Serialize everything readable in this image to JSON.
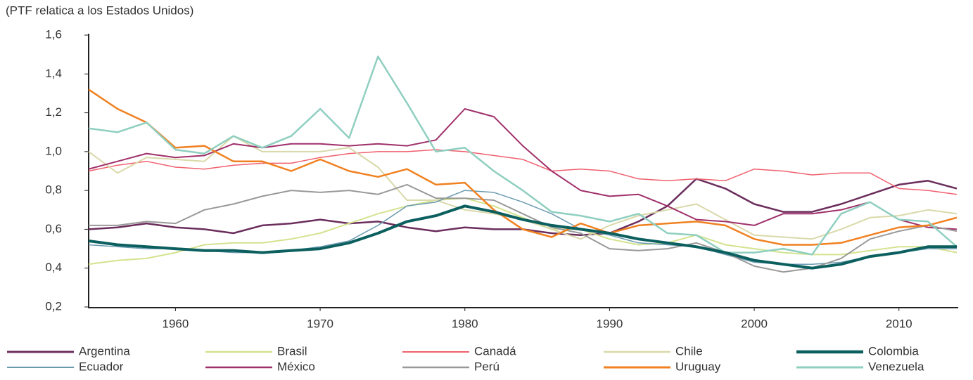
{
  "chart_data": {
    "type": "line",
    "subtitle": "(PTF relatica a los Estados Unidos)",
    "x": [
      1954,
      1956,
      1958,
      1960,
      1962,
      1964,
      1966,
      1968,
      1970,
      1972,
      1974,
      1976,
      1978,
      1980,
      1982,
      1984,
      1986,
      1988,
      1990,
      1992,
      1994,
      1996,
      1998,
      2000,
      2002,
      2004,
      2006,
      2008,
      2010,
      2012,
      2014
    ],
    "xlim": [
      1954,
      2014
    ],
    "xticks": [
      1960,
      1970,
      1980,
      1990,
      2000,
      2010
    ],
    "ylim": [
      0.2,
      1.6
    ],
    "yticks": [
      {
        "value": 0.2,
        "label": "0,2"
      },
      {
        "value": 0.4,
        "label": "0,4"
      },
      {
        "value": 0.6,
        "label": "0,6"
      },
      {
        "value": 0.8,
        "label": "0,8"
      },
      {
        "value": 1.0,
        "label": "1,0"
      },
      {
        "value": 1.2,
        "label": "1,2"
      },
      {
        "value": 1.4,
        "label": "1,4"
      },
      {
        "value": 1.6,
        "label": "1,6"
      }
    ],
    "series": [
      {
        "name": "Argentina",
        "color": "#6b2d5c",
        "width": 2.5,
        "values": [
          0.6,
          0.61,
          0.63,
          0.61,
          0.6,
          0.58,
          0.62,
          0.63,
          0.65,
          0.63,
          0.64,
          0.61,
          0.59,
          0.61,
          0.6,
          0.6,
          0.58,
          0.57,
          0.58,
          0.64,
          0.72,
          0.86,
          0.81,
          0.73,
          0.69,
          0.69,
          0.73,
          0.78,
          0.83,
          0.85,
          0.81
        ]
      },
      {
        "name": "Brasil",
        "color": "#d3e38f",
        "width": 2,
        "values": [
          0.42,
          0.44,
          0.45,
          0.48,
          0.52,
          0.53,
          0.53,
          0.55,
          0.58,
          0.63,
          0.68,
          0.72,
          0.75,
          0.76,
          0.72,
          0.66,
          0.6,
          0.6,
          0.55,
          0.52,
          0.53,
          0.57,
          0.52,
          0.5,
          0.48,
          0.47,
          0.47,
          0.49,
          0.51,
          0.51,
          0.48
        ]
      },
      {
        "name": "Canadá",
        "color": "#f0606e",
        "width": 1.5,
        "values": [
          0.9,
          0.93,
          0.95,
          0.92,
          0.91,
          0.93,
          0.94,
          0.94,
          0.97,
          0.99,
          1.0,
          1.0,
          1.01,
          1.0,
          0.98,
          0.96,
          0.9,
          0.91,
          0.9,
          0.86,
          0.85,
          0.86,
          0.85,
          0.91,
          0.9,
          0.88,
          0.89,
          0.89,
          0.81,
          0.8,
          0.78
        ]
      },
      {
        "name": "Chile",
        "color": "#d9d9aa",
        "width": 2,
        "values": [
          1.0,
          0.89,
          0.97,
          0.96,
          0.95,
          1.08,
          1.0,
          1.0,
          1.0,
          1.02,
          0.92,
          0.75,
          0.75,
          0.7,
          0.68,
          0.65,
          0.6,
          0.55,
          0.62,
          0.67,
          0.7,
          0.73,
          0.65,
          0.57,
          0.56,
          0.55,
          0.6,
          0.66,
          0.67,
          0.7,
          0.68
        ]
      },
      {
        "name": "Colombia",
        "color": "#0c5f5f",
        "width": 4,
        "values": [
          0.54,
          0.52,
          0.51,
          0.5,
          0.49,
          0.49,
          0.48,
          0.49,
          0.5,
          0.53,
          0.58,
          0.64,
          0.67,
          0.72,
          0.69,
          0.65,
          0.62,
          0.6,
          0.58,
          0.55,
          0.53,
          0.51,
          0.48,
          0.44,
          0.42,
          0.4,
          0.42,
          0.46,
          0.48,
          0.51,
          0.51
        ]
      },
      {
        "name": "Ecuador",
        "color": "#6a9ab0",
        "width": 1.5,
        "values": [
          0.52,
          0.51,
          0.5,
          0.5,
          0.49,
          0.48,
          0.48,
          0.49,
          0.51,
          0.54,
          0.62,
          0.72,
          0.74,
          0.8,
          0.79,
          0.74,
          0.68,
          0.6,
          0.57,
          0.53,
          0.52,
          0.51,
          0.47,
          0.43,
          0.42,
          0.42,
          0.43,
          0.46,
          0.48,
          0.5,
          0.5
        ]
      },
      {
        "name": "México",
        "color": "#a0306a",
        "width": 2,
        "values": [
          0.91,
          0.95,
          0.99,
          0.97,
          0.98,
          1.04,
          1.02,
          1.04,
          1.04,
          1.03,
          1.04,
          1.03,
          1.06,
          1.22,
          1.18,
          1.03,
          0.9,
          0.8,
          0.77,
          0.78,
          0.72,
          0.65,
          0.64,
          0.62,
          0.68,
          0.68,
          0.7,
          0.74,
          0.65,
          0.61,
          0.6
        ]
      },
      {
        "name": "Perú",
        "color": "#999999",
        "width": 2,
        "values": [
          0.62,
          0.62,
          0.64,
          0.63,
          0.7,
          0.73,
          0.77,
          0.8,
          0.79,
          0.8,
          0.78,
          0.83,
          0.76,
          0.76,
          0.75,
          0.68,
          0.61,
          0.58,
          0.5,
          0.49,
          0.5,
          0.53,
          0.48,
          0.41,
          0.38,
          0.4,
          0.45,
          0.55,
          0.59,
          0.62,
          0.59
        ]
      },
      {
        "name": "Uruguay",
        "color": "#f08020",
        "width": 2.5,
        "values": [
          1.32,
          1.22,
          1.15,
          1.02,
          1.03,
          0.95,
          0.95,
          0.9,
          0.96,
          0.9,
          0.87,
          0.91,
          0.83,
          0.84,
          0.7,
          0.6,
          0.56,
          0.63,
          0.58,
          0.62,
          0.63,
          0.64,
          0.62,
          0.55,
          0.52,
          0.52,
          0.53,
          0.57,
          0.61,
          0.62,
          0.66
        ]
      },
      {
        "name": "Venezuela",
        "color": "#8fcfc0",
        "width": 2.5,
        "values": [
          1.12,
          1.1,
          1.15,
          1.01,
          0.99,
          1.08,
          1.02,
          1.08,
          1.22,
          1.07,
          1.49,
          1.25,
          1.0,
          1.02,
          0.9,
          0.8,
          0.69,
          0.67,
          0.64,
          0.68,
          0.58,
          0.57,
          0.48,
          0.48,
          0.5,
          0.47,
          0.68,
          0.74,
          0.65,
          0.64,
          0.51
        ]
      }
    ]
  }
}
